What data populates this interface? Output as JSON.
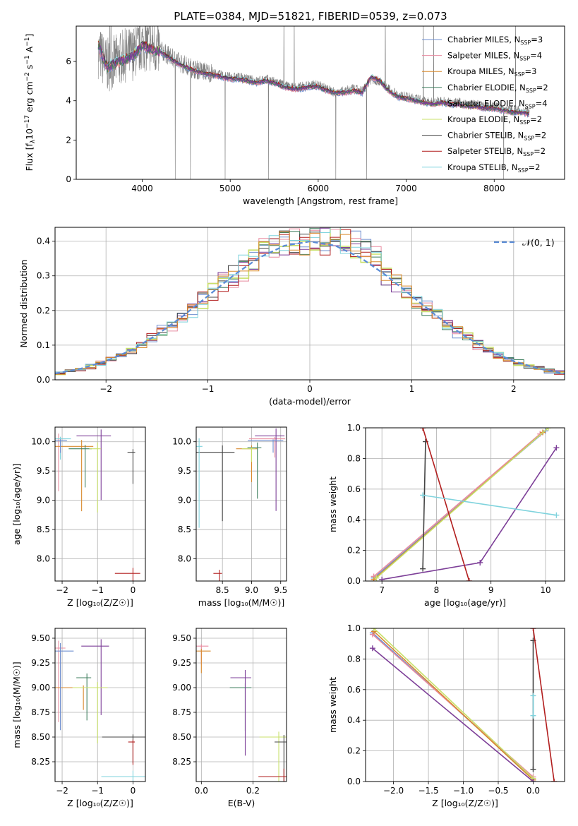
{
  "figure_title": "PLATE=0384, MJD=51821, FIBERID=0539, z=0.073",
  "legend_colors": [
    "#6f8fcf",
    "#e88ca0",
    "#d98a2e",
    "#3f7f5f",
    "#7d3f98",
    "#c8e06a",
    "#444444",
    "#b21e1e",
    "#7fd3dd"
  ],
  "legend_panel1": [
    "Chabrier MILES, N_SSP=3",
    "Salpeter MILES, N_SSP=4",
    "Kroupa MILES, N_SSP=3",
    "Chabrier ELODIE, N_SSP=2",
    "Salpeter ELODIE, N_SSP=4",
    "Kroupa ELODIE, N_SSP=2",
    "Chabrier STELIB, N_SSP=2",
    "Salpeter STELIB, N_SSP=2",
    "Kroupa STELIB, N_SSP=2"
  ],
  "legend_panel2": "𝒩(0, 1)",
  "chart_data": [
    {
      "type": "line",
      "title": "PLATE=0384, MJD=51821, FIBERID=0539, z=0.073",
      "xlabel": "wavelength [Angstrom, rest frame]",
      "ylabel": "Flux [f_λ 10^-17 erg cm^-2 s^-1 A^-1]",
      "xlim": [
        3250,
        8800
      ],
      "ylim": [
        0,
        7.8
      ],
      "xticks": [
        4000,
        5000,
        6000,
        7000,
        8000
      ],
      "yticks": [
        0,
        2,
        4,
        6
      ],
      "series": [
        {
          "name": "data",
          "x": [
            3500,
            3600,
            3700,
            3800,
            3900,
            4000,
            4100,
            4200,
            4300,
            4400,
            4500,
            4600,
            4700,
            4800,
            4900,
            5000,
            5100,
            5200,
            5300,
            5400,
            5500,
            5600,
            5700,
            5800,
            5900,
            6000,
            6100,
            6200,
            6300,
            6400,
            6500,
            6600,
            6700,
            6800,
            6900,
            7000,
            7100,
            7200,
            7300,
            7400,
            7500,
            7600,
            7700,
            7800,
            7900,
            8000,
            8100,
            8200,
            8300,
            8400
          ],
          "y": [
            6.5,
            5.8,
            6.0,
            6.3,
            6.4,
            6.9,
            6.8,
            6.6,
            6.3,
            6.0,
            5.8,
            5.6,
            5.5,
            5.4,
            5.3,
            5.2,
            5.2,
            5.1,
            5.0,
            5.1,
            5.0,
            4.8,
            4.7,
            4.7,
            4.8,
            4.8,
            4.6,
            4.4,
            4.5,
            4.6,
            4.5,
            5.1,
            5.0,
            4.6,
            4.3,
            4.2,
            4.1,
            4.0,
            3.9,
            4.0,
            3.9,
            3.9,
            3.8,
            3.8,
            3.7,
            3.7,
            3.6,
            3.5,
            3.5,
            3.4
          ]
        },
        {
          "name": "model",
          "x": [
            3500,
            3600,
            3700,
            3800,
            3900,
            4000,
            4100,
            4200,
            4300,
            4400,
            4500,
            4600,
            4700,
            4800,
            4900,
            5000,
            5100,
            5200,
            5300,
            5400,
            5500,
            5600,
            5700,
            5800,
            5900,
            6000,
            6100,
            6200,
            6300,
            6400,
            6500,
            6600,
            6700,
            6800,
            6900,
            7000,
            7100,
            7200,
            7300,
            7400,
            7500,
            7600,
            7700,
            7800,
            7900,
            8000,
            8100,
            8200,
            8300,
            8400
          ],
          "y": [
            6.8,
            5.7,
            5.9,
            6.1,
            6.3,
            6.8,
            6.6,
            6.5,
            6.2,
            5.9,
            5.7,
            5.5,
            5.4,
            5.3,
            5.2,
            5.1,
            5.1,
            5.0,
            4.9,
            5.0,
            4.9,
            4.7,
            4.6,
            4.6,
            4.7,
            4.7,
            4.5,
            4.4,
            4.4,
            4.5,
            4.4,
            5.2,
            5.0,
            4.5,
            4.2,
            4.1,
            4.0,
            3.9,
            3.8,
            3.9,
            3.8,
            3.8,
            3.7,
            3.7,
            3.6,
            3.6,
            3.5,
            3.4,
            3.4,
            3.3
          ]
        }
      ]
    },
    {
      "type": "line",
      "xlabel": "(data-model)/error",
      "ylabel": "Normed distribution",
      "xlim": [
        -2.5,
        2.5
      ],
      "ylim": [
        0,
        0.44
      ],
      "xticks": [
        -2,
        -1,
        0,
        1,
        2
      ],
      "yticks": [
        0.0,
        0.1,
        0.2,
        0.3,
        0.4
      ],
      "bin_width": 0.1,
      "series": [
        {
          "name": "Normal(0,1)",
          "x": [
            -2.5,
            -2.25,
            -2,
            -1.75,
            -1.5,
            -1.25,
            -1,
            -0.75,
            -0.5,
            -0.25,
            0,
            0.25,
            0.5,
            0.75,
            1,
            1.25,
            1.5,
            1.75,
            2,
            2.25,
            2.5
          ],
          "y": [
            0.018,
            0.032,
            0.054,
            0.086,
            0.13,
            0.183,
            0.242,
            0.301,
            0.352,
            0.387,
            0.399,
            0.387,
            0.352,
            0.301,
            0.242,
            0.183,
            0.13,
            0.086,
            0.054,
            0.032,
            0.018
          ]
        }
      ]
    },
    {
      "type": "scatter",
      "xlabel": "Z [log10(Z/Z_sun)]",
      "ylabel": "age [log10(age/yr)]",
      "xlim": [
        -2.2,
        0.35
      ],
      "ylim": [
        7.62,
        10.25
      ],
      "xticks": [
        -2,
        -1,
        0
      ],
      "yticks": [
        8.0,
        8.5,
        9.0,
        9.5,
        10.0
      ],
      "points": [
        {
          "x": -2.1,
          "y": 10.05
        },
        {
          "x": -1.45,
          "y": 9.92
        },
        {
          "x": -1.35,
          "y": 9.88
        },
        {
          "x": -0.9,
          "y": 10.1
        },
        {
          "x": -1.0,
          "y": 9.88
        },
        {
          "x": 0.0,
          "y": 9.82
        },
        {
          "x": 0.0,
          "y": 7.75
        },
        {
          "x": -2.05,
          "y": 10.05
        },
        {
          "x": -2.05,
          "y": 10.02
        }
      ]
    },
    {
      "type": "scatter",
      "xlabel": "mass [log10(M/M_sun)]",
      "xlim": [
        8.05,
        9.6
      ],
      "ylim": [
        7.62,
        10.25
      ],
      "xticks": [
        8.5,
        9.0,
        9.5
      ],
      "yticks": [
        8.0,
        8.5,
        9.0,
        9.5,
        10.0
      ],
      "points": [
        {
          "x": 9.4,
          "y": 10.05
        },
        {
          "x": 9.0,
          "y": 9.88
        },
        {
          "x": 9.1,
          "y": 9.9
        },
        {
          "x": 9.42,
          "y": 10.1
        },
        {
          "x": 9.0,
          "y": 9.88
        },
        {
          "x": 8.5,
          "y": 9.82
        },
        {
          "x": 8.45,
          "y": 7.75
        },
        {
          "x": 8.1,
          "y": 9.92
        },
        {
          "x": 9.37,
          "y": 10.02
        }
      ]
    },
    {
      "type": "line",
      "xlabel": "age [log10(age/yr)]",
      "ylabel": "mass weight",
      "xlim": [
        6.7,
        10.35
      ],
      "ylim": [
        0,
        1
      ],
      "xticks": [
        7,
        8,
        9,
        10
      ],
      "yticks": [
        0.0,
        0.2,
        0.4,
        0.6,
        0.8,
        1.0
      ],
      "series": [
        {
          "x": [
            6.85,
            10.0
          ],
          "y": [
            0.02,
            0.98
          ]
        },
        {
          "x": [
            6.85,
            9.9
          ],
          "y": [
            0.03,
            0.96
          ]
        },
        {
          "x": [
            6.85,
            9.95
          ],
          "y": [
            0.01,
            0.97
          ]
        },
        {
          "x": [
            6.9,
            10.05
          ],
          "y": [
            0.02,
            1.0
          ]
        },
        {
          "x": [
            7.0,
            8.8,
            10.2
          ],
          "y": [
            0.01,
            0.12,
            0.87
          ]
        },
        {
          "x": [
            7.75,
            7.8
          ],
          "y": [
            0.08,
            0.91
          ]
        },
        {
          "x": [
            7.75,
            8.6
          ],
          "y": [
            1.0,
            0.0
          ]
        },
        {
          "x": [
            7.75,
            10.2
          ],
          "y": [
            0.56,
            0.43
          ]
        }
      ]
    },
    {
      "type": "scatter",
      "xlabel": "Z [log10(Z/Z_sun)]",
      "ylabel": "mass [log10(M/M_sun)]",
      "xlim": [
        -2.2,
        0.35
      ],
      "ylim": [
        8.05,
        9.6
      ],
      "xticks": [
        -2,
        -1,
        0
      ],
      "yticks": [
        8.25,
        8.5,
        8.75,
        9.0,
        9.25,
        9.5
      ],
      "points": [
        {
          "x": -2.1,
          "y": 9.4
        },
        {
          "x": -1.4,
          "y": 9.0
        },
        {
          "x": -1.3,
          "y": 9.1
        },
        {
          "x": -0.9,
          "y": 9.42
        },
        {
          "x": -1.0,
          "y": 9.0
        },
        {
          "x": 0.0,
          "y": 8.5
        },
        {
          "x": 0.0,
          "y": 8.45
        },
        {
          "x": 0.0,
          "y": 8.1
        },
        {
          "x": -2.05,
          "y": 9.37
        }
      ]
    },
    {
      "type": "scatter",
      "xlabel": "E(B-V)",
      "xlim": [
        -0.02,
        0.33
      ],
      "ylim": [
        8.05,
        9.6
      ],
      "xticks": [
        0.0,
        0.2
      ],
      "yticks": [
        8.25,
        8.5,
        8.75,
        9.0,
        9.25,
        9.5
      ],
      "points": [
        {
          "x": 0.0,
          "y": 9.42
        },
        {
          "x": 0.0,
          "y": 9.37
        },
        {
          "x": 0.17,
          "y": 9.0
        },
        {
          "x": 0.17,
          "y": 9.1
        },
        {
          "x": 0.3,
          "y": 8.5
        },
        {
          "x": 0.32,
          "y": 8.45
        },
        {
          "x": 0.32,
          "y": 8.1
        }
      ]
    },
    {
      "type": "line",
      "xlabel": "Z [log10(Z/Z_sun)]",
      "ylabel": "mass weight",
      "xlim": [
        -2.4,
        0.45
      ],
      "ylim": [
        0,
        1
      ],
      "xticks": [
        -2.0,
        -1.5,
        -1.0,
        -0.5,
        0.0
      ],
      "yticks": [
        0.0,
        0.2,
        0.4,
        0.6,
        0.8,
        1.0
      ],
      "series": [
        {
          "x": [
            -2.3,
            0.0
          ],
          "y": [
            0.97,
            0.02
          ]
        },
        {
          "x": [
            -2.3,
            0.0
          ],
          "y": [
            0.96,
            0.03
          ]
        },
        {
          "x": [
            -2.28,
            0.0
          ],
          "y": [
            0.98,
            0.01
          ]
        },
        {
          "x": [
            -2.28,
            0.0
          ],
          "y": [
            1.0,
            0.02
          ]
        },
        {
          "x": [
            -2.3,
            0.0
          ],
          "y": [
            0.87,
            0.0
          ]
        },
        {
          "x": [
            0.0,
            0.0
          ],
          "y": [
            0.08,
            0.92
          ]
        },
        {
          "x": [
            0.0,
            0.3
          ],
          "y": [
            1.0,
            0.0
          ]
        },
        {
          "x": [
            0.0,
            0.0
          ],
          "y": [
            0.43,
            0.56
          ]
        }
      ]
    }
  ]
}
